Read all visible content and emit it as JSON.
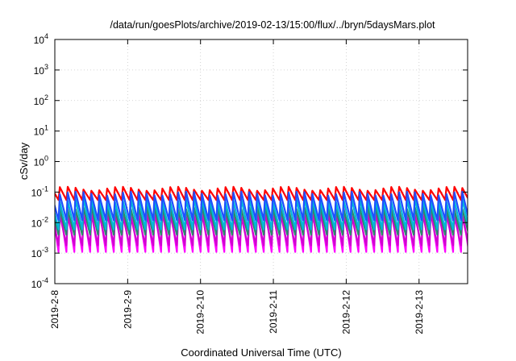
{
  "chart_data": {
    "type": "line",
    "title": "/data/run/goesPlots/archive/2019-02-13/15:00/flux/../bryn/5daysMars.plot",
    "xlabel": "Coordinated Universal Time (UTC)",
    "ylabel": "cSv/day",
    "y_scale": "log",
    "ylim": [
      0.0001,
      10000
    ],
    "y_ticks": [
      {
        "base": "10",
        "exp": "4"
      },
      {
        "base": "10",
        "exp": "3"
      },
      {
        "base": "10",
        "exp": "2"
      },
      {
        "base": "10",
        "exp": "1"
      },
      {
        "base": "10",
        "exp": "0"
      },
      {
        "base": "10",
        "exp": "-1"
      },
      {
        "base": "10",
        "exp": "-2"
      },
      {
        "base": "10",
        "exp": "-3"
      },
      {
        "base": "10",
        "exp": "-4"
      }
    ],
    "x_start": "2019-02-08T00:00",
    "x_end": "2019-02-13T16:00",
    "x_ticks": [
      "2019-2-8",
      "2019-2-9",
      "2019-2-10",
      "2019-2-11",
      "2019-2-12",
      "2019-2-13"
    ],
    "grid": true,
    "legend": "none",
    "pattern": "sawtooth",
    "cycle_hours": 2.6,
    "series": [
      {
        "color": "#ff0000",
        "peak": 0.13,
        "trough": 0.055
      },
      {
        "color": "#ff00ff",
        "peak": 0.03,
        "trough": 0.0011
      },
      {
        "color": "#d100d1",
        "peak": 0.018,
        "trough": 0.0018
      },
      {
        "color": "#2a8a6a",
        "peak": 0.03,
        "trough": 0.004
      },
      {
        "color": "#00b8d8",
        "peak": 0.055,
        "trough": 0.006
      },
      {
        "color": "#1f4fff",
        "peak": 0.09,
        "trough": 0.012
      }
    ]
  }
}
